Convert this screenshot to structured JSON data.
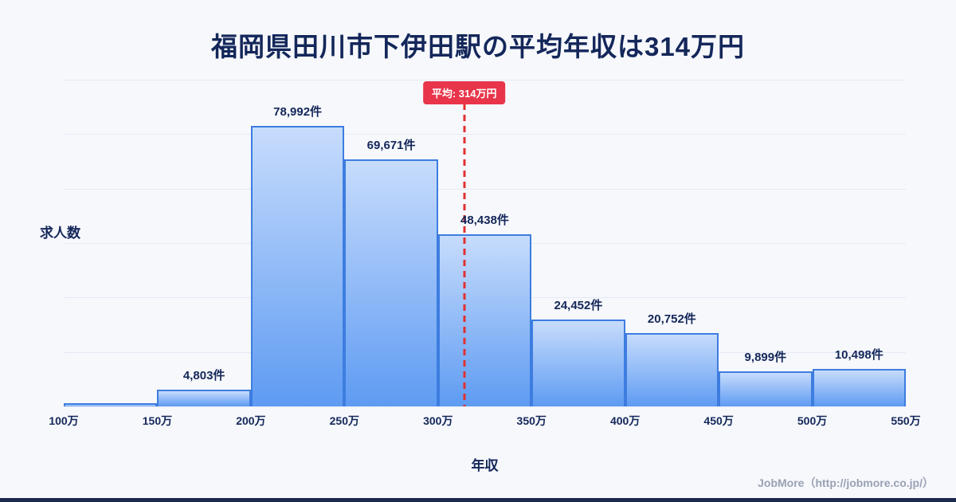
{
  "page": {
    "title": "福岡県田川市下伊田駅の平均年収は314万円",
    "footer_credit": "JobMore（http://jobmore.co.jp/）"
  },
  "chart_data": {
    "type": "bar",
    "title": "福岡県田川市下伊田駅の平均年収は314万円",
    "xlabel": "年収",
    "ylabel": "求人数",
    "x_ticks": [
      "100万",
      "150万",
      "200万",
      "250万",
      "300万",
      "350万",
      "400万",
      "450万",
      "500万",
      "550万"
    ],
    "x_range": [
      100,
      550
    ],
    "ylim": [
      0,
      92000
    ],
    "grid": "horizontal",
    "legend": "none",
    "categories": [
      "100万-150万",
      "150万-200万",
      "200万-250万",
      "250万-300万",
      "300万-350万",
      "350万-400万",
      "400万-450万",
      "450万-500万",
      "500万-550万"
    ],
    "values": [
      null,
      4803,
      78992,
      69671,
      48438,
      24452,
      20752,
      9899,
      10498
    ],
    "value_labels": [
      "",
      "4,803件",
      "78,992件",
      "69,671件",
      "48,438件",
      "24,452件",
      "20,752件",
      "9,899件",
      "10,498件"
    ],
    "average": {
      "value": 314,
      "label": "平均: 314万円"
    },
    "colors": {
      "bar_fill_top": "#c7dcfc",
      "bar_fill_bottom": "#5e9bf2",
      "bar_border": "#3d7de0",
      "average_line": "#e03131",
      "average_badge_bg": "#e8354a",
      "title_text": "#14275a",
      "background": "#f6f8fc"
    }
  }
}
